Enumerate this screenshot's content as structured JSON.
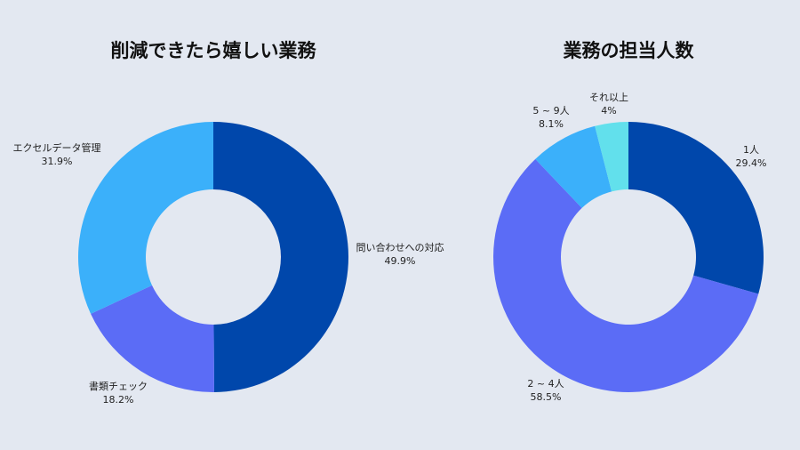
{
  "chart_data": [
    {
      "type": "pie",
      "donut": true,
      "title": "削減できたら嬉しい業務",
      "slices": [
        {
          "label": "問い合わせへの対応",
          "value": 49.9,
          "display": "49.9%",
          "color": "#0047ab"
        },
        {
          "label": "書類チェック",
          "value": 18.2,
          "display": "18.2%",
          "color": "#5b6cf6"
        },
        {
          "label": "エクセルデータ管理",
          "value": 31.9,
          "display": "31.9%",
          "color": "#3bb0fa"
        }
      ]
    },
    {
      "type": "pie",
      "donut": true,
      "title": "業務の担当人数",
      "slices": [
        {
          "label": "1人",
          "value": 29.4,
          "display": "29.4%",
          "color": "#0047ab"
        },
        {
          "label": "2 ~ 4人",
          "value": 58.5,
          "display": "58.5%",
          "color": "#5b6cf6"
        },
        {
          "label": "5 ~ 9人",
          "value": 8.1,
          "display": "8.1%",
          "color": "#3bb0fa"
        },
        {
          "label": "それ以上",
          "value": 4,
          "display": "4%",
          "color": "#62e0ec"
        }
      ]
    }
  ]
}
